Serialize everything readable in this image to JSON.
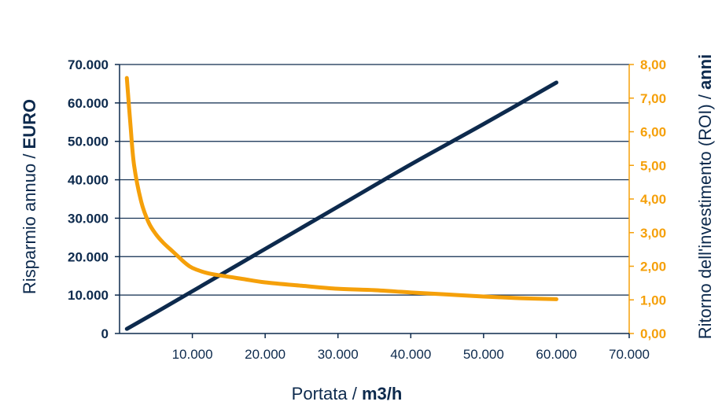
{
  "colors": {
    "navy": "#0d2a4d",
    "orange": "#f5a00a",
    "grid": "#0d2a4d"
  },
  "chart_data": {
    "type": "line",
    "x_axis": {
      "label_prefix": "Portata / ",
      "label_bold": "m3/h",
      "range": [
        0,
        70000
      ],
      "ticks": [
        10000,
        20000,
        30000,
        40000,
        50000,
        60000,
        70000
      ],
      "tick_labels": [
        "10.000",
        "20.000",
        "30.000",
        "40.000",
        "50.000",
        "60.000",
        "70.000"
      ]
    },
    "y_left": {
      "label_prefix": "Risparmio annuo / ",
      "label_bold": "EURO",
      "range": [
        0,
        70000
      ],
      "ticks": [
        0,
        10000,
        20000,
        30000,
        40000,
        50000,
        60000,
        70000
      ],
      "tick_labels": [
        "0",
        "10.000",
        "20.000",
        "30.000",
        "40.000",
        "50.000",
        "60.000",
        "70.000"
      ]
    },
    "y_right": {
      "label_prefix": "Ritorno dell'investimento (ROI) / ",
      "label_bold": "anni",
      "range": [
        0,
        8
      ],
      "ticks": [
        0,
        1,
        2,
        3,
        4,
        5,
        6,
        7,
        8
      ],
      "tick_labels": [
        "0,00",
        "1,00",
        "2,00",
        "3,00",
        "4,00",
        "5,00",
        "6,00",
        "7,00",
        "8,00"
      ]
    },
    "grid": true,
    "series": [
      {
        "axis": "left",
        "color": "#0d2a4d",
        "points": [
          [
            1000,
            1200
          ],
          [
            5000,
            5500
          ],
          [
            10000,
            11000
          ],
          [
            20000,
            22000
          ],
          [
            30000,
            33000
          ],
          [
            40000,
            44000
          ],
          [
            50000,
            54500
          ],
          [
            60000,
            65300
          ]
        ]
      },
      {
        "axis": "right",
        "color": "#f5a00a",
        "points": [
          [
            1000,
            7.6
          ],
          [
            1500,
            6.2
          ],
          [
            2000,
            5.0
          ],
          [
            3000,
            3.9
          ],
          [
            4000,
            3.3
          ],
          [
            5000,
            2.95
          ],
          [
            6000,
            2.7
          ],
          [
            7000,
            2.5
          ],
          [
            8000,
            2.3
          ],
          [
            9000,
            2.1
          ],
          [
            10000,
            1.95
          ],
          [
            12000,
            1.8
          ],
          [
            14000,
            1.72
          ],
          [
            17000,
            1.62
          ],
          [
            20000,
            1.52
          ],
          [
            25000,
            1.42
          ],
          [
            30000,
            1.33
          ],
          [
            35000,
            1.29
          ],
          [
            40000,
            1.22
          ],
          [
            45000,
            1.16
          ],
          [
            50000,
            1.1
          ],
          [
            55000,
            1.05
          ],
          [
            60000,
            1.02
          ]
        ]
      }
    ]
  }
}
